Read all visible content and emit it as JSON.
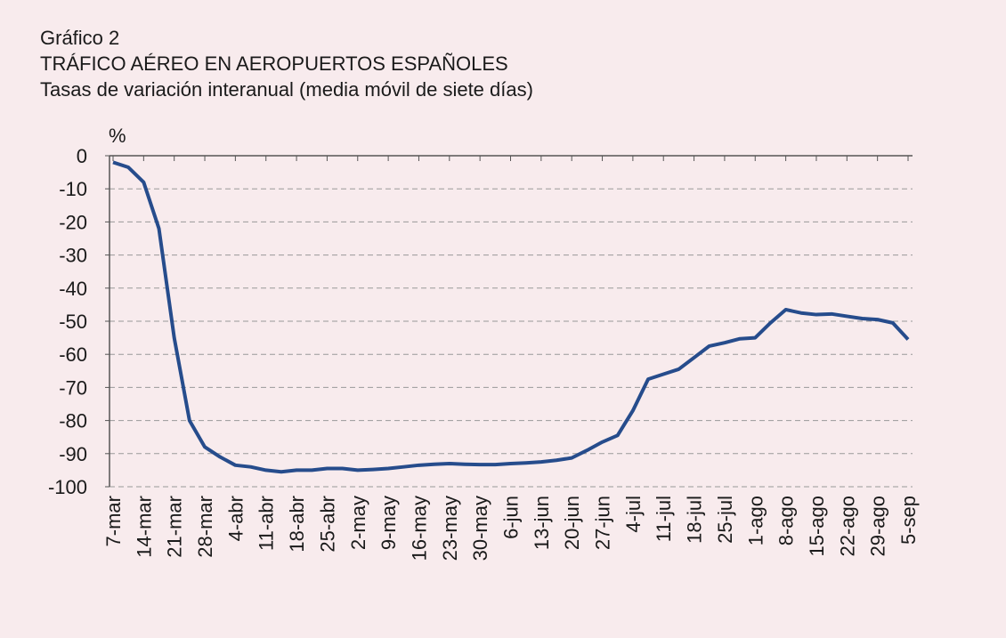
{
  "chart_data": {
    "type": "line",
    "label": "Gráfico 2",
    "title": "TRÁFICO AÉREO EN AEROPUERTOS ESPAÑOLES",
    "subtitle": "Tasas de variación interanual (media móvil de siete días)",
    "y_label": "%",
    "categories": [
      "7-mar",
      null,
      "14-mar",
      null,
      "21-mar",
      null,
      "28-mar",
      null,
      "4-abr",
      null,
      "11-abr",
      null,
      "18-abr",
      null,
      "25-abr",
      null,
      "2-may",
      null,
      "9-may",
      null,
      "16-may",
      null,
      "23-may",
      null,
      "30-may",
      null,
      "6-jun",
      null,
      "13-jun",
      null,
      "20-jun",
      null,
      "27-jun",
      null,
      "4-jul",
      null,
      "11-jul",
      null,
      "18-jul",
      null,
      "25-jul",
      null,
      "1-ago",
      null,
      "8-ago",
      null,
      "15-ago",
      null,
      "22-ago",
      null,
      "29-ago",
      null,
      "5-sep"
    ],
    "series": [
      {
        "color": "#264c8c",
        "values": [
          -2,
          -3.5,
          -8,
          -22,
          -55,
          -80,
          -88,
          -91,
          -93.5,
          -94,
          -95,
          -95.5,
          -95,
          -95,
          -94.5,
          -94.5,
          -95,
          -94.8,
          -94.5,
          -94,
          -93.5,
          -93.2,
          -93,
          -93.2,
          -93.3,
          -93.3,
          -93,
          -92.8,
          -92.5,
          -92,
          -91.3,
          -89,
          -86.5,
          -84.5,
          -77,
          -67.5,
          -66,
          -64.5,
          -61,
          -57.5,
          -56.5,
          -55.3,
          -55,
          -50.5,
          -46.5,
          -47.5,
          -48,
          -47.8,
          -48.5,
          -49.2,
          -49.5,
          -50.5,
          -55.5
        ]
      }
    ],
    "ylim": [
      -100,
      0
    ],
    "yticks": [
      0,
      -10,
      -20,
      -30,
      -40,
      -50,
      -60,
      -70,
      -80,
      -90,
      -100
    ],
    "grid": true
  }
}
